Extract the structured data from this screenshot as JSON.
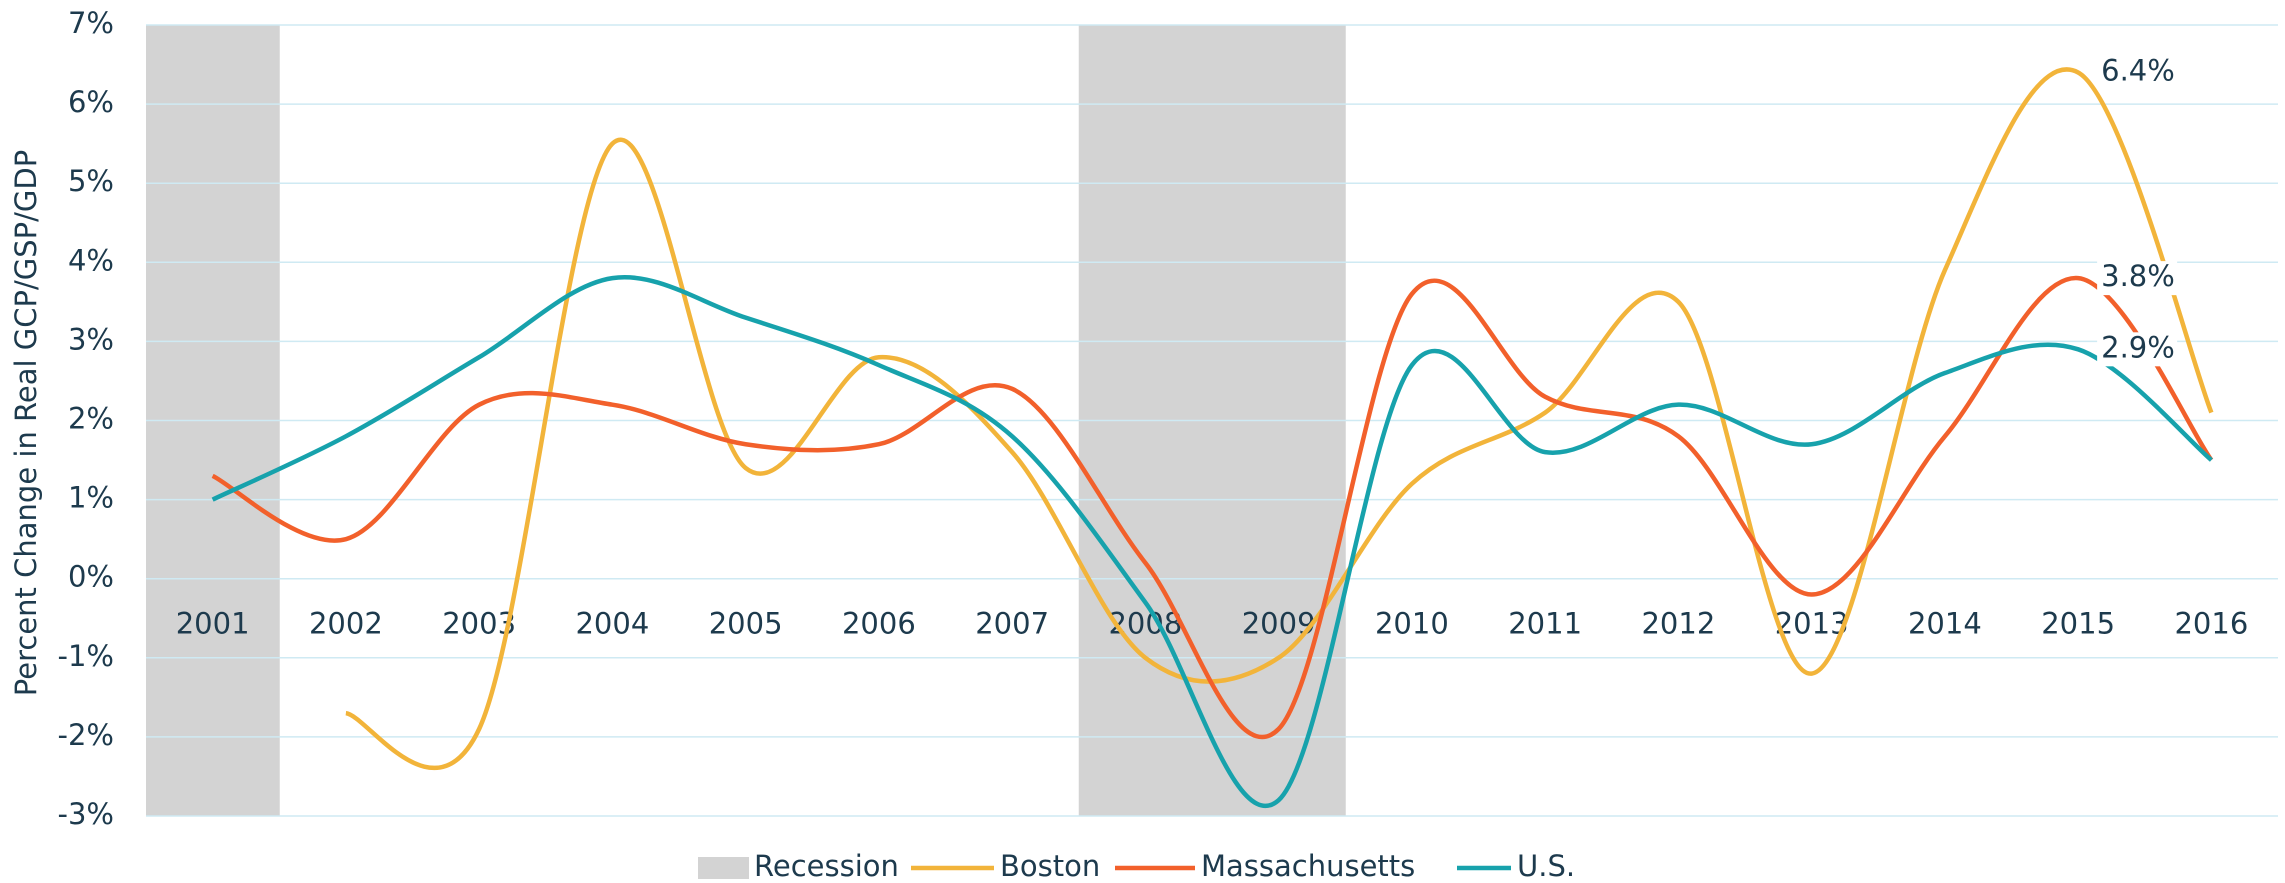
{
  "chart_data": {
    "type": "line",
    "y_label": "Percent Change in Real GCP/GSP/GDP",
    "categories": [
      "2001",
      "2002",
      "2003",
      "2004",
      "2005",
      "2006",
      "2007",
      "2008",
      "2009",
      "2010",
      "2011",
      "2012",
      "2013",
      "2014",
      "2015",
      "2016"
    ],
    "recession": {
      "name": "Recession",
      "color": "#d3d3d3",
      "shaded": [
        true,
        false,
        false,
        false,
        false,
        false,
        false,
        true,
        true,
        false,
        false,
        false,
        false,
        false,
        false,
        false
      ]
    },
    "series": [
      {
        "name": "Boston",
        "color": "#f2b43a",
        "values": [
          null,
          -1.7,
          -1.9,
          5.5,
          1.4,
          2.8,
          1.6,
          -1.0,
          -1.0,
          1.2,
          2.1,
          3.5,
          -1.2,
          3.9,
          6.4,
          2.1
        ],
        "value_labels": [
          null,
          null,
          null,
          null,
          null,
          null,
          null,
          null,
          null,
          null,
          null,
          null,
          null,
          null,
          "6.4%",
          null
        ]
      },
      {
        "name": "Massachusetts",
        "color": "#f2602b",
        "values": [
          1.3,
          0.5,
          2.2,
          2.2,
          1.7,
          1.7,
          2.4,
          0.2,
          -1.9,
          3.6,
          2.3,
          1.8,
          -0.2,
          1.8,
          3.8,
          1.5
        ],
        "value_labels": [
          null,
          null,
          null,
          null,
          null,
          null,
          null,
          null,
          null,
          null,
          null,
          null,
          null,
          null,
          "3.8%",
          null
        ]
      },
      {
        "name": "U.S.",
        "color": "#17a2ac",
        "values": [
          1.0,
          1.8,
          2.8,
          3.8,
          3.3,
          2.7,
          1.8,
          -0.3,
          -2.8,
          2.7,
          1.6,
          2.2,
          1.7,
          2.6,
          2.9,
          1.5
        ],
        "value_labels": [
          null,
          null,
          null,
          null,
          null,
          null,
          null,
          null,
          null,
          null,
          null,
          null,
          null,
          null,
          "2.9%",
          null
        ]
      }
    ],
    "ylim": [
      -3,
      7
    ],
    "yticks": [
      {
        "value": -3,
        "label": "-3%"
      },
      {
        "value": -2,
        "label": "-2%"
      },
      {
        "value": -1,
        "label": "-1%"
      },
      {
        "value": 0,
        "label": "0%"
      },
      {
        "value": 1,
        "label": "1%"
      },
      {
        "value": 2,
        "label": "2%"
      },
      {
        "value": 3,
        "label": "3%"
      },
      {
        "value": 4,
        "label": "4%"
      },
      {
        "value": 5,
        "label": "5%"
      },
      {
        "value": 6,
        "label": "6%"
      },
      {
        "value": 7,
        "label": "7%"
      }
    ],
    "grid": true
  }
}
